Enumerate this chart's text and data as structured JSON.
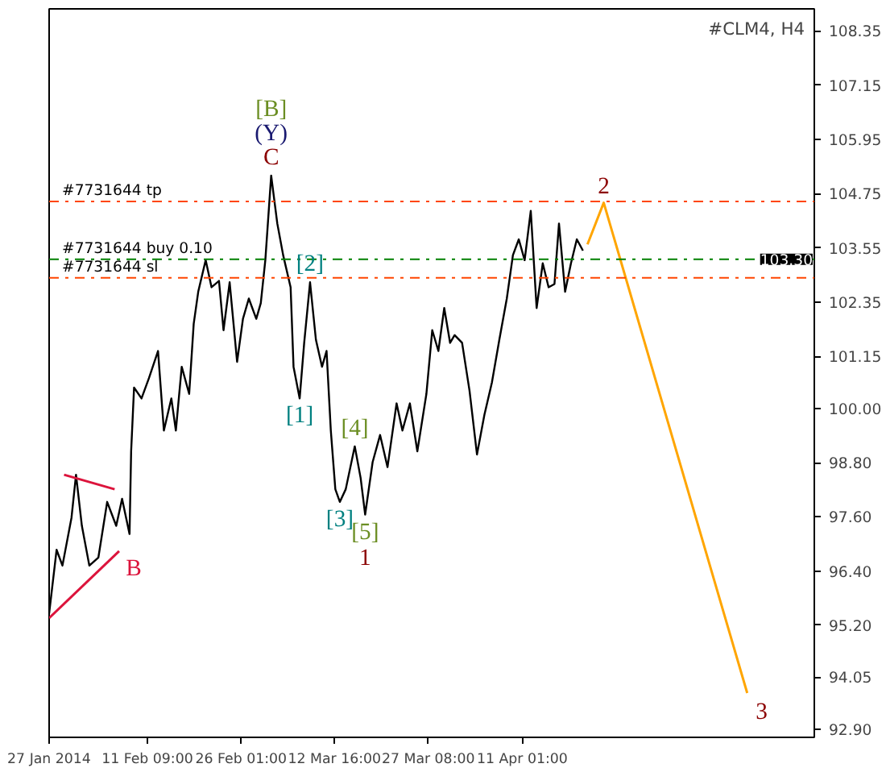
{
  "chart_data": {
    "type": "line",
    "title": "#CLM4, H4",
    "xlim": [
      "2014-01-27T00:00",
      "2014-05-26T18:00"
    ],
    "xticks": [
      {
        "value": "2014-01-27",
        "label": "27 Jan 2014"
      },
      {
        "value": "2014-02-11T09:00",
        "label": "11 Feb 09:00"
      },
      {
        "value": "2014-02-26T01:00",
        "label": "26 Feb 01:00"
      },
      {
        "value": "2014-03-12T16:00",
        "label": "12 Mar 16:00"
      },
      {
        "value": "2014-03-27T08:00",
        "label": "27 Mar 08:00"
      },
      {
        "value": "2014-04-11T01:00",
        "label": "11 Apr 01:00"
      }
    ],
    "ylim": [
      92.72,
      108.84
    ],
    "yticks": [
      {
        "value": 92.9,
        "label": "92.90"
      },
      {
        "value": 94.05,
        "label": "94.05"
      },
      {
        "value": 95.2,
        "label": "95.20"
      },
      {
        "value": 96.4,
        "label": "96.40"
      },
      {
        "value": 97.6,
        "label": "97.60"
      },
      {
        "value": 98.8,
        "label": "98.80"
      },
      {
        "value": 100.0,
        "label": "100.00"
      },
      {
        "value": 101.15,
        "label": "101.15"
      },
      {
        "value": 102.35,
        "label": "102.35"
      },
      {
        "value": 103.55,
        "label": "103.55"
      },
      {
        "value": 104.75,
        "label": "104.75"
      },
      {
        "value": 105.95,
        "label": "105.95"
      },
      {
        "value": 107.15,
        "label": "107.15"
      },
      {
        "value": 108.35,
        "label": "108.35"
      }
    ],
    "grid": false,
    "series": [
      {
        "color": "#000000",
        "x": [
          "2014-01-27T00:00",
          "2014-01-28T04:00",
          "2014-01-29T02:00",
          "2014-01-30T12:00",
          "2014-01-31T05:00",
          "2014-02-01T03:00",
          "2014-02-02T07:00",
          "2014-02-03T17:00",
          "2014-02-05T02:00",
          "2014-02-06T12:00",
          "2014-02-07T10:00",
          "2014-02-08T14:00",
          "2014-02-08T20:00",
          "2014-02-09T07:00",
          "2014-02-10T11:00",
          "2014-02-11T15:00",
          "2014-02-13T01:00",
          "2014-02-13T23:00",
          "2014-02-15T03:00",
          "2014-02-15T20:00",
          "2014-02-16T18:00",
          "2014-02-17T22:00",
          "2014-02-18T15:00",
          "2014-02-19T08:00",
          "2014-02-20T12:00",
          "2014-02-21T10:00",
          "2014-02-22T14:00",
          "2014-02-23T07:00",
          "2014-02-24T06:00",
          "2014-02-25T10:00",
          "2014-02-26T08:00",
          "2014-02-27T06:00",
          "2014-02-28T10:00",
          "2014-03-01T03:00",
          "2014-03-01T20:00",
          "2014-03-02T18:00",
          "2014-03-03T17:00",
          "2014-03-04T15:00",
          "2014-03-05T19:00",
          "2014-03-06T06:00",
          "2014-03-07T05:00",
          "2014-03-07T22:00",
          "2014-03-08T20:00",
          "2014-03-09T18:00",
          "2014-03-10T17:00",
          "2014-03-11T10:00",
          "2014-03-12T02:00",
          "2014-03-12T19:00",
          "2014-03-13T12:00",
          "2014-03-14T10:00",
          "2014-03-15T20:00",
          "2014-03-16T18:00",
          "2014-03-17T11:00",
          "2014-03-18T15:00",
          "2014-03-19T19:00",
          "2014-03-20T23:00",
          "2014-03-22T09:00",
          "2014-03-23T07:00",
          "2014-03-24T11:00",
          "2014-03-25T15:00",
          "2014-03-27T01:00",
          "2014-03-27T23:00",
          "2014-03-28T22:00",
          "2014-03-29T20:00",
          "2014-03-30T18:00",
          "2014-03-31T11:00",
          "2014-04-01T15:00",
          "2014-04-02T19:00",
          "2014-04-03T23:00",
          "2014-04-05T03:00",
          "2014-04-06T07:00",
          "2014-04-07T11:00",
          "2014-04-08T15:00",
          "2014-04-09T14:00",
          "2014-04-10T12:00",
          "2014-04-11T10:00",
          "2014-04-12T09:00",
          "2014-04-13T07:00",
          "2014-04-14T06:00",
          "2014-04-15T04:00",
          "2014-04-16T02:00",
          "2014-04-16T19:00",
          "2014-04-17T18:00",
          "2014-04-18T16:00",
          "2014-04-19T14:00",
          "2014-04-20T13:00"
        ],
        "values": [
          95.46,
          96.87,
          96.52,
          97.58,
          98.53,
          97.4,
          96.52,
          96.7,
          97.93,
          97.4,
          98.0,
          97.22,
          99.05,
          100.46,
          100.22,
          100.67,
          101.27,
          99.51,
          100.22,
          99.51,
          100.92,
          100.32,
          101.87,
          102.58,
          103.28,
          102.68,
          102.82,
          101.73,
          102.79,
          101.03,
          101.98,
          102.43,
          101.98,
          102.33,
          103.28,
          105.15,
          104.09,
          103.39,
          102.68,
          100.92,
          100.22,
          101.45,
          102.79,
          101.52,
          100.92,
          101.27,
          99.51,
          98.21,
          97.93,
          98.21,
          99.16,
          98.46,
          97.65,
          98.81,
          99.41,
          98.7,
          100.11,
          99.51,
          100.11,
          99.05,
          100.32,
          101.73,
          101.27,
          102.22,
          101.45,
          101.62,
          101.45,
          100.39,
          98.98,
          99.86,
          100.57,
          101.52,
          102.43,
          103.39,
          103.74,
          103.28,
          104.37,
          102.22,
          103.21,
          102.68,
          102.75,
          104.09,
          102.58,
          103.21,
          103.74,
          103.49
        ]
      },
      {
        "color": "#ffa500",
        "x": [
          "2014-04-21T06:00",
          "2014-04-23T19:00",
          "2014-05-16T06:00"
        ],
        "values": [
          103.63,
          104.55,
          93.7
        ]
      },
      {
        "color": "#dc143c",
        "x": [
          "2014-01-29T08:00",
          "2014-02-06T06:00"
        ],
        "values": [
          98.53,
          98.21
        ]
      },
      {
        "color": "#dc143c",
        "x": [
          "2014-01-27T00:00",
          "2014-02-06T23:00"
        ],
        "values": [
          95.36,
          96.84
        ]
      }
    ],
    "ref_lines": [
      {
        "axis": "y",
        "value": 104.58,
        "label": "#7731644 tp",
        "color": "#ff4500",
        "line_style": "dashdot"
      },
      {
        "axis": "y",
        "value": 103.3,
        "label": "#7731644 buy 0.10",
        "color": "#008000",
        "line_style": "dashdot"
      },
      {
        "axis": "y",
        "value": 102.89,
        "label": "#7731644 sl",
        "color": "#ff4500",
        "line_style": "dashdot"
      }
    ],
    "annotations": [
      {
        "text": "[B]",
        "x": "2014-03-02T18:00",
        "y": 105.15
      },
      {
        "text": "(Y)",
        "x": "2014-03-02T18:00",
        "y": 105.15
      },
      {
        "text": "C",
        "x": "2014-03-02T18:00",
        "y": 105.15
      },
      {
        "text": "[2]",
        "x": "2014-03-08T20:00",
        "y": 102.79
      },
      {
        "text": "[1]",
        "x": "2014-03-07T05:00",
        "y": 100.22
      },
      {
        "text": "[4]",
        "x": "2014-03-15T20:00",
        "y": 99.16
      },
      {
        "text": "[3]",
        "x": "2014-03-13T12:00",
        "y": 97.93
      },
      {
        "text": "[5]",
        "x": "2014-03-17T11:00",
        "y": 97.65
      },
      {
        "text": "1",
        "x": "2014-03-17T11:00",
        "y": 97.65
      },
      {
        "text": "B",
        "x": "2014-02-06T23:00",
        "y": 96.84
      },
      {
        "text": "2",
        "x": "2014-04-23T19:00",
        "y": 104.55
      },
      {
        "text": "3",
        "x": "2014-05-16T06:00",
        "y": 93.7
      },
      {
        "text": "103.30",
        "y": 103.3
      }
    ]
  }
}
